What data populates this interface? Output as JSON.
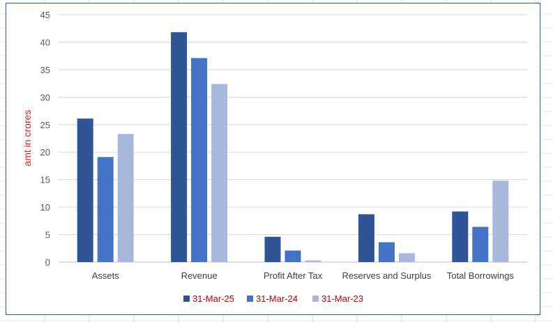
{
  "chart_data": {
    "type": "bar",
    "categories": [
      "Assets",
      "Revenue",
      "Profit After Tax",
      "Reserves and Surplus",
      "Total Borrowings"
    ],
    "series": [
      {
        "name": "31-Mar-25",
        "color": "#2f5597",
        "values": [
          26.1,
          41.8,
          4.6,
          8.7,
          9.2
        ]
      },
      {
        "name": "31-Mar-24",
        "color": "#4472c4",
        "values": [
          19.1,
          37.1,
          2.1,
          3.6,
          6.4
        ]
      },
      {
        "name": "31-Mar-23",
        "color": "#a9b8dc",
        "values": [
          23.3,
          32.4,
          0.3,
          1.6,
          14.8
        ]
      }
    ],
    "title": "",
    "xlabel": "",
    "ylabel": "amt in crores",
    "ylim": [
      0,
      45
    ],
    "yticks": [
      0,
      5,
      10,
      15,
      20,
      25,
      30,
      35,
      40,
      45
    ],
    "grid": true,
    "legend_position": "bottom"
  }
}
